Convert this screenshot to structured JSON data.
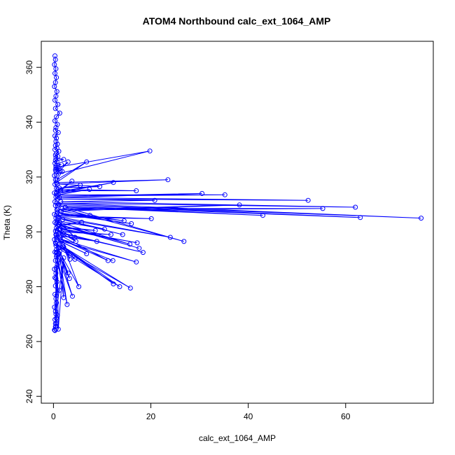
{
  "chart_data": {
    "type": "line",
    "title": "ATOM4 Northbound calc_ext_1064_AMP",
    "xlabel": "calc_ext_1064_AMP",
    "ylabel": "Theta (K)",
    "xlim": [
      -2.5,
      78
    ],
    "ylim": [
      237.5,
      369.5
    ],
    "xticks": [
      0,
      20,
      40,
      60
    ],
    "yticks": [
      240,
      260,
      280,
      300,
      320,
      340,
      360
    ],
    "color": "#0000ff",
    "marker": "open-circle",
    "grid": false,
    "legend": "none",
    "series": [
      {
        "x": [
          0.3,
          0.4,
          0.2,
          0.5,
          0.3,
          0.6,
          0.4,
          0.2,
          0.7,
          0.5,
          0.3,
          0.9,
          0.4,
          1.3,
          0.6,
          0.3,
          0.8,
          0.5,
          0.4,
          1.0,
          0.3,
          0.6,
          0.5,
          0.8,
          0.4,
          0.7,
          0.3,
          1.1,
          0.6,
          0.4,
          0.9,
          0.5,
          2.1,
          0.4,
          0.7,
          0.3,
          1.6,
          0.5,
          0.8,
          0.6,
          0.4,
          1.4,
          0.5,
          3.0,
          0.6,
          19.8,
          0.5,
          1.8,
          0.7,
          6.8,
          0.6,
          23.5,
          0.8,
          9.5,
          1.2,
          5.5,
          0.9,
          17.0,
          1.5,
          3.8,
          0.7,
          12.3,
          0.6,
          7.4,
          1.0,
          35.2,
          0.8,
          30.5,
          1.2,
          52.3,
          0.9,
          20.8,
          1.5,
          62.0,
          0.7,
          75.5,
          1.1,
          63.0,
          0.9,
          43.0,
          2.4,
          26.8,
          1.8,
          55.3,
          0.8,
          38.2,
          1.6,
          14.5,
          0.8,
          16.0,
          1.4,
          7.5,
          0.7,
          20.1,
          1.0,
          24.0,
          0.9,
          14.2,
          1.9,
          10.5,
          0.8,
          4.4,
          1.3,
          15.7,
          0.6,
          17.6,
          1.1,
          5.8,
          0.9,
          8.6,
          0.6,
          17.2,
          1.4,
          4.6,
          0.7,
          11.8,
          0.9,
          18.4,
          1.4,
          3.4,
          0.5,
          8.9,
          1.6,
          11.2,
          0.6,
          12.2,
          1.3,
          17.0,
          0.8,
          6.8,
          1.5,
          4.4,
          0.4,
          12.3,
          1.2,
          15.8,
          0.5,
          5.2,
          2.1,
          13.6,
          1.0,
          3.0,
          0.6,
          3.3,
          1.3,
          2.1,
          0.6,
          3.9,
          1.2,
          2.8,
          0.7,
          0.5,
          2.1,
          1.0,
          0.8,
          0.5,
          0.6,
          0.4,
          0.5,
          0.6
        ],
        "y": [
          364.2,
          362.8,
          361.0,
          359.5,
          357.8,
          356.3,
          354.5,
          353.0,
          351.2,
          349.5,
          348.0,
          346.5,
          345.0,
          343.3,
          342.0,
          340.5,
          339.2,
          338.0,
          337.0,
          336.2,
          335.0,
          334.2,
          333.0,
          332.0,
          331.5,
          330.5,
          330.0,
          329.4,
          328.6,
          328.0,
          327.5,
          327.0,
          326.4,
          326.0,
          325.6,
          325.0,
          324.6,
          324.0,
          323.5,
          323.0,
          322.6,
          322.3,
          322.0,
          325.5,
          321.0,
          329.5,
          323.5,
          322.0,
          319.0,
          325.5,
          318.0,
          319.0,
          317.5,
          316.5,
          316.0,
          317.0,
          315.5,
          315.0,
          315.0,
          318.5,
          314.5,
          318.0,
          314.0,
          315.5,
          313.5,
          313.5,
          313.0,
          314.0,
          312.5,
          311.5,
          312.0,
          311.5,
          311.0,
          309.0,
          310.5,
          305.0,
          310.0,
          305.2,
          309.5,
          306.0,
          309.0,
          296.5,
          308.5,
          308.5,
          308.0,
          309.8,
          307.5,
          304.0,
          307.0,
          303.0,
          306.5,
          306.0,
          306.0,
          304.8,
          305.5,
          298.0,
          305.0,
          299.0,
          304.5,
          301.0,
          304.0,
          298.0,
          303.5,
          295.5,
          303.0,
          294.0,
          302.5,
          303.5,
          302.0,
          300.5,
          301.5,
          296.0,
          301.0,
          296.5,
          300.5,
          299.0,
          300.0,
          292.5,
          299.5,
          290.0,
          299.0,
          296.5,
          298.5,
          289.5,
          298.0,
          289.5,
          297.5,
          289.0,
          297.0,
          292.0,
          296.5,
          290.0,
          296.0,
          281.0,
          295.5,
          279.5,
          295.0,
          280.0,
          294.5,
          280.0,
          294.0,
          285.0,
          293.5,
          283.0,
          293.0,
          276.0,
          292.5,
          276.5,
          292.0,
          273.5,
          291.5,
          270.0,
          290.5,
          264.5,
          289.5,
          265.5,
          287.0,
          266.5,
          283.0,
          268.5
        ]
      },
      {
        "x": [
          0.2,
          0.4,
          0.3,
          0.6,
          0.2,
          0.5,
          0.3,
          0.4,
          0.7,
          0.2,
          0.5,
          0.3,
          0.9,
          0.4,
          0.6,
          0.2,
          0.5,
          1.0,
          0.3,
          0.6,
          0.4,
          0.8,
          0.2,
          0.5,
          0.3,
          0.7,
          0.4,
          1.2,
          0.3,
          0.5,
          0.6,
          0.2,
          0.4,
          0.8,
          0.3,
          0.6,
          0.4,
          0.5,
          0.2,
          0.3
        ],
        "y": [
          320.5,
          319.0,
          317.3,
          315.8,
          314.2,
          312.7,
          311.0,
          309.6,
          308.1,
          306.4,
          305.0,
          303.4,
          302.0,
          300.3,
          298.8,
          297.2,
          295.7,
          294.1,
          292.6,
          291.0,
          289.5,
          288.0,
          286.4,
          284.9,
          283.3,
          281.8,
          280.3,
          278.7,
          277.2,
          275.6,
          274.1,
          272.5,
          271.0,
          269.5,
          268.0,
          266.6,
          265.4,
          264.6,
          264.2,
          264.0
        ]
      }
    ]
  }
}
